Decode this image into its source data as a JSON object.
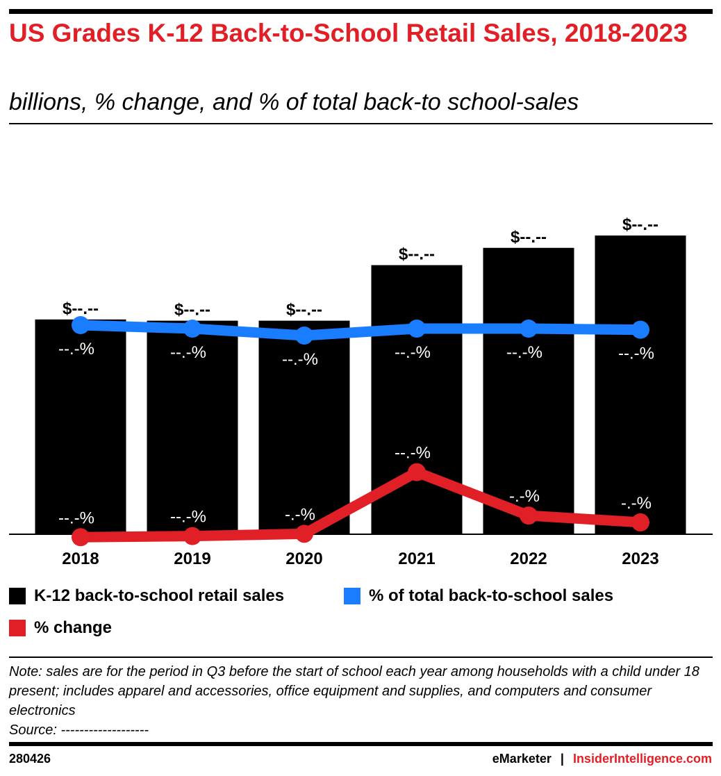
{
  "header": {
    "title": "US Grades K-12 Back-to-School Retail Sales, 2018-2023",
    "subtitle": "billions, % change, and % of total back-to school-sales"
  },
  "colors": {
    "bar": "#000000",
    "share_line": "#1a7cff",
    "change_line": "#e11f26",
    "title": "#e11f26"
  },
  "chart_data": {
    "type": "bar",
    "categories": [
      "2018",
      "2019",
      "2020",
      "2021",
      "2022",
      "2023"
    ],
    "series": [
      {
        "name": "K-12 back-to-school retail sales",
        "type": "bar",
        "values": [
          24.9,
          24.8,
          24.8,
          29.3,
          30.7,
          31.7
        ],
        "labels": [
          "$--.--",
          "$--.--",
          "$--.--",
          "$--.--",
          "$--.--",
          "$--.--"
        ]
      },
      {
        "name": "% of total back-to-school sales",
        "type": "line",
        "values": [
          17.6,
          17.3,
          16.7,
          17.3,
          17.3,
          17.2
        ],
        "labels": [
          "--.-%",
          "--.-%",
          "--.-%",
          "--.-%",
          "--.-%",
          "--.-%"
        ]
      },
      {
        "name": "% change",
        "type": "line",
        "values": [
          -0.2,
          -0.1,
          0.1,
          5.5,
          1.7,
          1.1
        ],
        "labels": [
          "--.-%",
          "--.-%",
          "-.-%",
          "--.-%",
          "-.-%",
          "-.-%"
        ]
      }
    ]
  },
  "legend": {
    "items": [
      {
        "label": "K-12 back-to-school retail sales"
      },
      {
        "label": "% of total back-to-school sales"
      },
      {
        "label": "% change"
      }
    ]
  },
  "notes": {
    "note": "Note: sales are for the period in Q3 before the start of school each year among households with a child under 18 present; includes apparel and accessories, office equipment and supplies, and computers and consumer electronics",
    "source": "Source: -------------------"
  },
  "footer": {
    "id": "280426",
    "brand_emarketer": "eMarketer",
    "brand_separator": "|",
    "brand_ii": "InsiderIntelligence.com"
  }
}
